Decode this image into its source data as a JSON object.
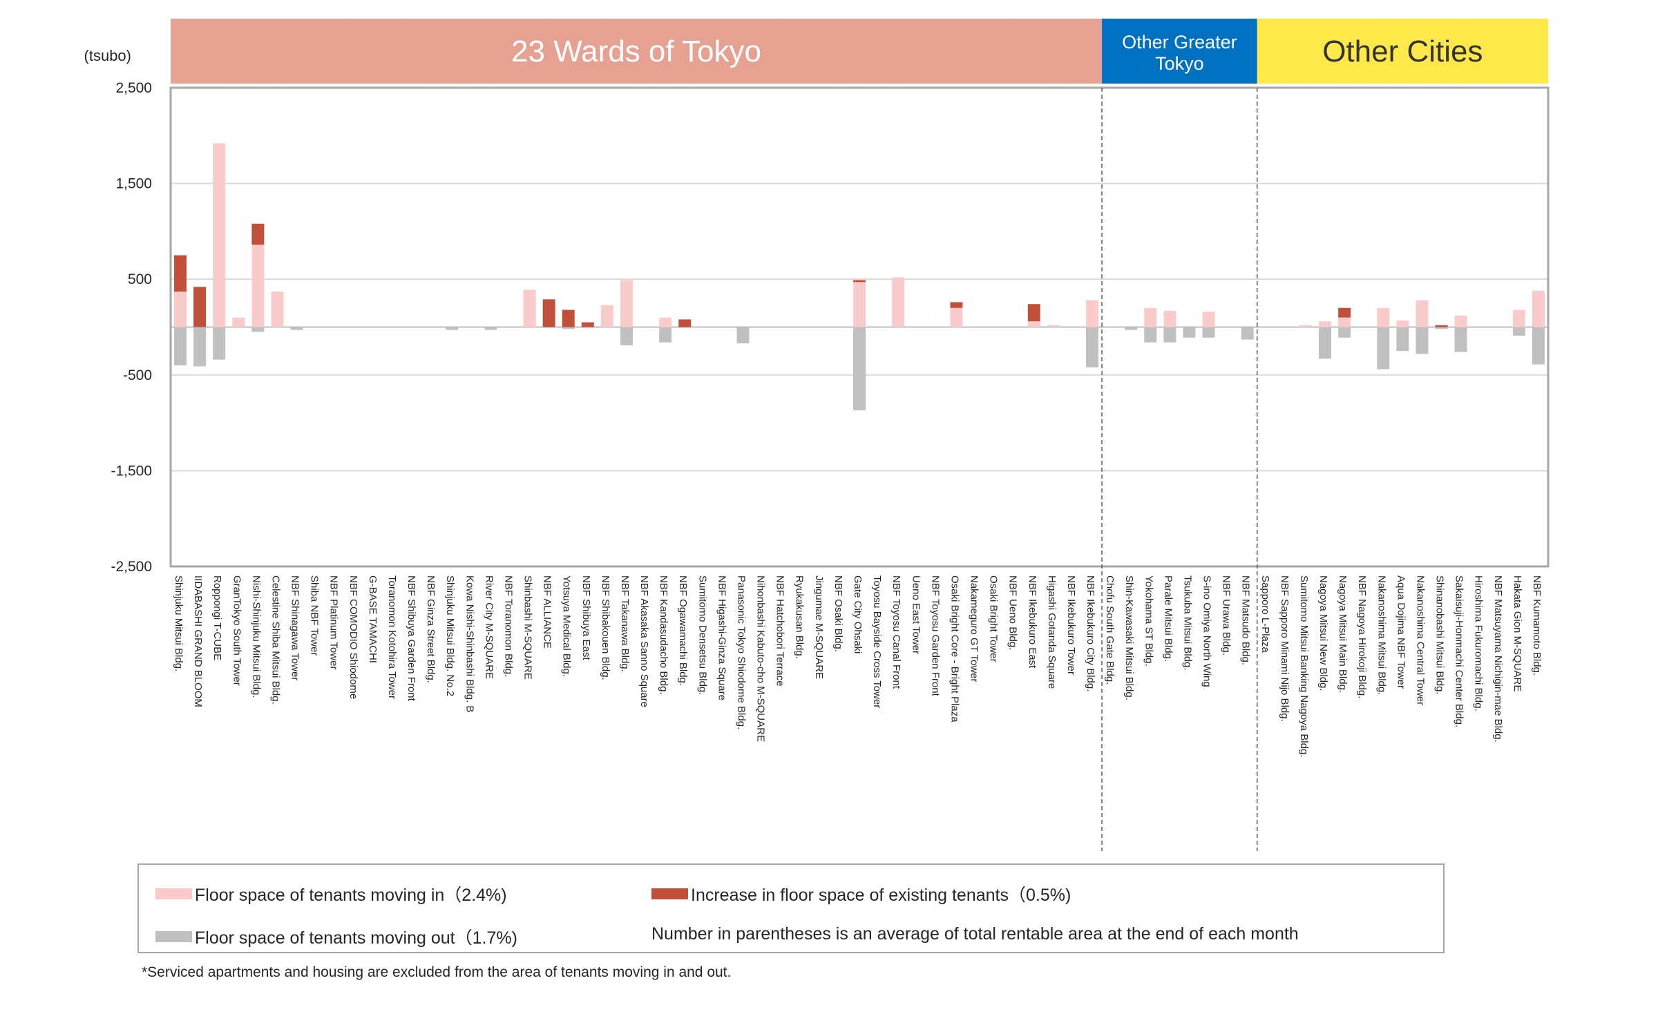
{
  "chart_data": {
    "type": "bar",
    "stacked": true,
    "unit_label": "(tsubo)",
    "ylim": [
      -2500,
      2500
    ],
    "yticks": [
      2500,
      1500,
      500,
      -500,
      -1500,
      -2500
    ],
    "ytick_labels": [
      "2,500",
      "1,500",
      "500",
      "-500",
      "-1,500",
      "-2,500"
    ],
    "grid": true,
    "regions": [
      {
        "label": "23 Wards of Tokyo",
        "color": "#e5a293",
        "text_color": "#ffffff",
        "start": 0,
        "end": 48
      },
      {
        "label": "Other Greater Tokyo",
        "color": "#0070c0",
        "text_color": "#ffffff",
        "start": 48,
        "end": 56
      },
      {
        "label": "Other Cities",
        "color": "#ffe84a",
        "text_color": "#333333",
        "start": 56,
        "end": 71
      }
    ],
    "categories": [
      "Shinjuku Mitsui Bldg.",
      "IIDABASHI GRAND BLOOM",
      "Roppongi T-CUBE",
      "GranTokyo South Tower",
      "Nishi-Shinjuku Mitsui Bldg.",
      "Celestine Shiba Mitsui Bldg.",
      "NBF Shinagawa Tower",
      "Shiba NBF Tower",
      "NBF Platinum Tower",
      "NBF COMODIO Shiodome",
      "G-BASE TAMACHI",
      "Toranomon Kotohira Tower",
      "NBF Shibuya Garden Front",
      "NBF Ginza Street Bldg.",
      "Shinjuku Mitsui Bldg. No.2",
      "Kowa Nishi-Shinbashi Bldg. B",
      "River City M-SQUARE",
      "NBF Toranomon Bldg.",
      "Shinbashi M-SQUARE",
      "NBF ALLIANCE",
      "Yotsuya Medical Bldg.",
      "NBF Shibuya East",
      "NBF Shibakouen Bldg.",
      "NBF Takanawa Bldg.",
      "NBF Akasaka Sanno Square",
      "NBF Kandasudacho Bldg.",
      "NBF Ogawamachi Bldg.",
      "Sumitomo Densetsu Bldg.",
      "NBF Higashi-Ginza Square",
      "Panasonic Tokyo Shiodome Bldg.",
      "Nihonbashi Kabuto-cho M-SQUARE",
      "NBF Hatchobori Terrace",
      "Ryukakusan Bldg.",
      "Jingumae M-SQUARE",
      "NBF Osaki Bldg.",
      "Gate City Ohsaki",
      "Toyosu Bayside Cross Tower",
      "NBF Toyosu Canal Front",
      "Ueno East Tower",
      "NBF Toyosu Garden Front",
      "Osaki Bright Core - Bright Plaza",
      "Nakameguro GT Tower",
      "Osaki Bright Tower",
      "NBF Ueno Bldg.",
      "NBF Ikebukuro East",
      "Higashi Gotanda Square",
      "NBF Ikebukuro Tower",
      "NBF Ikebukuro City Bldg.",
      "Chofu South Gate Bldg.",
      "Shin-Kawasaki Mitsui Bldg.",
      "Yokohama ST Bldg.",
      "Parale Mitsui Bldg.",
      "Tsukuba Mitsui Bldg.",
      "S-ino Omiya North Wing",
      "NBF Urawa Bldg.",
      "NBF Matsudo Bldg.",
      "Sapporo L-Plaza",
      "NBF Sapporo Minami Nijo Bldg.",
      "Sumitomo Mitsui Banking Nagoya Bldg.",
      "Nagoya Mitsui New Bldg.",
      "Nagoya Mitsui Main Bldg.",
      "NBF Nagoya Hirokoji Bldg.",
      "Nakanoshima Mitsui Bldg.",
      "Aqua Dojima NBF Tower",
      "Nakanoshima Central Tower",
      "Shinanobashi Mitsui Bldg.",
      "Sakaisuji-Honmachi Center Bldg.",
      "Hiroshima Fukuromachi Bldg.",
      "NBF Matsuyama Nichigin-mae Bldg.",
      "Hakata Gion M-SQUARE",
      "NBF Kumamoto Bldg."
    ],
    "series": [
      {
        "name": "Floor space of tenants moving in",
        "color": "#f9cbcb",
        "values": [
          370,
          0,
          1920,
          100,
          860,
          370,
          0,
          0,
          0,
          0,
          0,
          0,
          0,
          0,
          0,
          0,
          0,
          0,
          390,
          0,
          0,
          0,
          230,
          490,
          0,
          100,
          0,
          0,
          0,
          0,
          0,
          0,
          0,
          0,
          0,
          470,
          0,
          520,
          0,
          0,
          200,
          0,
          0,
          0,
          60,
          20,
          0,
          280,
          0,
          0,
          200,
          170,
          0,
          160,
          0,
          0,
          0,
          0,
          20,
          60,
          100,
          0,
          200,
          70,
          280,
          0,
          120,
          0,
          0,
          180,
          380
        ]
      },
      {
        "name": "Increase in floor space of existing tenants",
        "color": "#c1503b",
        "values": [
          380,
          420,
          0,
          0,
          220,
          0,
          0,
          0,
          0,
          0,
          0,
          0,
          0,
          0,
          0,
          0,
          0,
          0,
          0,
          290,
          180,
          50,
          0,
          0,
          0,
          0,
          80,
          0,
          0,
          0,
          0,
          0,
          0,
          0,
          0,
          20,
          0,
          0,
          0,
          0,
          60,
          0,
          0,
          0,
          180,
          0,
          0,
          0,
          0,
          0,
          0,
          0,
          0,
          0,
          0,
          0,
          0,
          0,
          0,
          0,
          100,
          0,
          0,
          0,
          0,
          20,
          0,
          0,
          0,
          0,
          0
        ]
      },
      {
        "name": "Floor space of tenants moving out",
        "color": "#c0c0c0",
        "values": [
          -400,
          -410,
          -340,
          0,
          -50,
          0,
          -30,
          0,
          0,
          0,
          0,
          0,
          0,
          0,
          -30,
          0,
          -30,
          0,
          0,
          0,
          -20,
          0,
          0,
          -190,
          0,
          -160,
          0,
          0,
          0,
          -170,
          0,
          0,
          0,
          0,
          0,
          -870,
          0,
          0,
          0,
          0,
          0,
          0,
          0,
          0,
          0,
          0,
          0,
          -420,
          0,
          -30,
          -160,
          -160,
          -110,
          -110,
          0,
          -130,
          0,
          0,
          0,
          -330,
          -110,
          0,
          -440,
          -250,
          -280,
          -20,
          -260,
          0,
          0,
          -90,
          -390
        ]
      }
    ]
  },
  "legend": {
    "moving_in": "Floor space of tenants moving in（2.4%)",
    "increase": "Increase in floor space of existing tenants（0.5%)",
    "moving_out": "Floor space of tenants moving out（1.7%)",
    "note": "Number in parentheses is an average of total rentable area at the end of each month"
  },
  "footnote": "*Serviced apartments and housing are excluded from the area of tenants moving in and out."
}
